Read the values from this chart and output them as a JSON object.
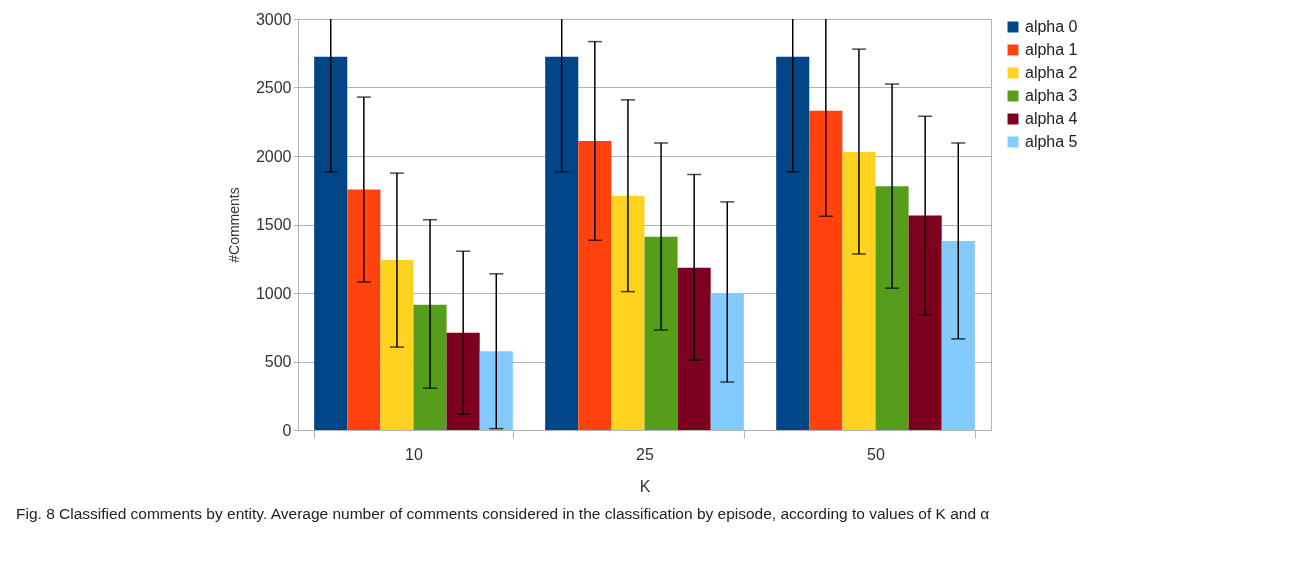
{
  "chart_data": {
    "type": "bar",
    "xlabel": "K",
    "ylabel": "#Comments",
    "categories": [
      "10",
      "25",
      "50"
    ],
    "series": [
      {
        "name": "alpha 0",
        "color": "#004586",
        "values": [
          2725,
          2725,
          2725
        ],
        "errors": [
          [
            1885,
            3000
          ],
          [
            1885,
            3000
          ],
          [
            1885,
            3000
          ]
        ]
      },
      {
        "name": "alpha 1",
        "color": "#ff420e",
        "values": [
          1755,
          2110,
          2330
        ],
        "errors": [
          [
            1080,
            2430
          ],
          [
            1385,
            2835
          ],
          [
            1560,
            3000
          ]
        ]
      },
      {
        "name": "alpha 2",
        "color": "#ffd320",
        "values": [
          1240,
          1710,
          2030
        ],
        "errors": [
          [
            605,
            1875
          ],
          [
            1010,
            2410
          ],
          [
            1285,
            2780
          ]
        ]
      },
      {
        "name": "alpha 3",
        "color": "#579d1c",
        "values": [
          915,
          1410,
          1780
        ],
        "errors": [
          [
            305,
            1535
          ],
          [
            730,
            2095
          ],
          [
            1035,
            2525
          ]
        ]
      },
      {
        "name": "alpha 4",
        "color": "#7e0021",
        "values": [
          710,
          1185,
          1565
        ],
        "errors": [
          [
            115,
            1305
          ],
          [
            510,
            1865
          ],
          [
            840,
            2290
          ]
        ]
      },
      {
        "name": "alpha 5",
        "color": "#83caff",
        "values": [
          575,
          1000,
          1380
        ],
        "errors": [
          [
            10,
            1140
          ],
          [
            350,
            1665
          ],
          [
            665,
            2095
          ]
        ]
      }
    ],
    "ylim": [
      0,
      3000
    ],
    "yticks": [
      0,
      500,
      1000,
      1500,
      2000,
      2500,
      3000
    ],
    "grid": "y",
    "legend": "right",
    "annotations": [
      "Fig. 8 Classified comments by entity. Average number of comments considered in the classification by episode, according to values of K and α"
    ]
  }
}
